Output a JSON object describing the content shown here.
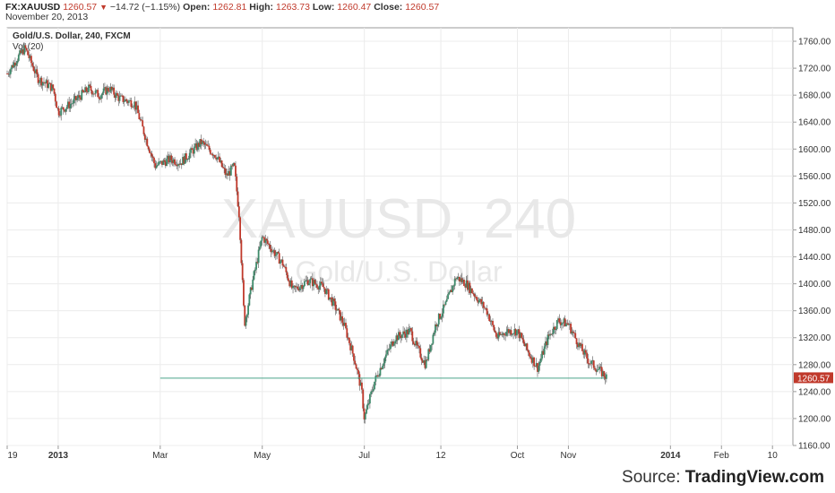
{
  "header": {
    "symbol": "FX:XAUUSD",
    "last": "1260.57",
    "change": "−14.72 (−1.15%)",
    "open_label": "Open:",
    "open": "1262.81",
    "high_label": "High:",
    "high": "1263.73",
    "low_label": "Low:",
    "low": "1260.47",
    "close_label": "Close:",
    "close": "1260.57",
    "date": "November 20, 2013"
  },
  "legend": {
    "title": "Gold/U.S. Dollar, 240, FXCM",
    "indicator": "Vol (20)"
  },
  "watermark": {
    "line1": "XAUUSD, 240",
    "line2": "Gold/U.S. Dollar"
  },
  "source": {
    "prefix": "Source:",
    "brand": "TradingView.com"
  },
  "colors": {
    "up": "#3d8a6a",
    "down": "#c0392b",
    "wick": "#555555",
    "support": "#4aa58a",
    "price_tag": "#c0392b",
    "grid": "#ececec"
  },
  "chart_data": {
    "type": "candlestick",
    "title": "Gold/U.S. Dollar, 240, FXCM",
    "ylim": [
      1160,
      1780
    ],
    "y_ticks": [
      1160,
      1200,
      1240,
      1280,
      1320,
      1360,
      1400,
      1440,
      1480,
      1520,
      1560,
      1600,
      1640,
      1680,
      1720,
      1760
    ],
    "x_ticks": [
      {
        "label": "19",
        "month": 0
      },
      {
        "label": "2013",
        "month": 1
      },
      {
        "label": "Mar",
        "month": 3
      },
      {
        "label": "May",
        "month": 5
      },
      {
        "label": "Jul",
        "month": 7
      },
      {
        "label": "12",
        "month": 8.5
      },
      {
        "label": "Oct",
        "month": 10
      },
      {
        "label": "Nov",
        "month": 11
      },
      {
        "label": "2014",
        "month": 13
      },
      {
        "label": "Feb",
        "month": 14
      },
      {
        "label": "10",
        "month": 15
      }
    ],
    "x_month_range": [
      0,
      15.4
    ],
    "last_price": 1260.57,
    "support_level": 1260,
    "support_range": [
      3,
      11.7
    ],
    "price_path": [
      [
        0.0,
        1712
      ],
      [
        0.2,
        1735
      ],
      [
        0.35,
        1750
      ],
      [
        0.6,
        1705
      ],
      [
        0.9,
        1690
      ],
      [
        1.0,
        1655
      ],
      [
        1.3,
        1670
      ],
      [
        1.6,
        1690
      ],
      [
        1.8,
        1680
      ],
      [
        2.0,
        1690
      ],
      [
        2.2,
        1675
      ],
      [
        2.5,
        1668
      ],
      [
        2.7,
        1620
      ],
      [
        2.9,
        1575
      ],
      [
        3.2,
        1585
      ],
      [
        3.4,
        1580
      ],
      [
        3.6,
        1595
      ],
      [
        3.8,
        1610
      ],
      [
        4.1,
        1590
      ],
      [
        4.3,
        1560
      ],
      [
        4.45,
        1575
      ],
      [
        4.55,
        1500
      ],
      [
        4.65,
        1340
      ],
      [
        4.8,
        1400
      ],
      [
        5.0,
        1470
      ],
      [
        5.2,
        1450
      ],
      [
        5.4,
        1430
      ],
      [
        5.6,
        1390
      ],
      [
        5.9,
        1405
      ],
      [
        6.2,
        1395
      ],
      [
        6.4,
        1370
      ],
      [
        6.6,
        1340
      ],
      [
        6.8,
        1290
      ],
      [
        6.95,
        1240
      ],
      [
        7.0,
        1200
      ],
      [
        7.2,
        1255
      ],
      [
        7.4,
        1290
      ],
      [
        7.6,
        1320
      ],
      [
        7.9,
        1330
      ],
      [
        8.0,
        1310
      ],
      [
        8.2,
        1280
      ],
      [
        8.4,
        1340
      ],
      [
        8.6,
        1370
      ],
      [
        8.8,
        1410
      ],
      [
        9.0,
        1400
      ],
      [
        9.2,
        1380
      ],
      [
        9.4,
        1360
      ],
      [
        9.6,
        1320
      ],
      [
        9.8,
        1330
      ],
      [
        10.0,
        1330
      ],
      [
        10.2,
        1300
      ],
      [
        10.4,
        1275
      ],
      [
        10.6,
        1320
      ],
      [
        10.8,
        1345
      ],
      [
        11.0,
        1340
      ],
      [
        11.2,
        1310
      ],
      [
        11.4,
        1285
      ],
      [
        11.55,
        1275
      ],
      [
        11.7,
        1265
      ],
      [
        11.75,
        1260.57
      ]
    ]
  }
}
